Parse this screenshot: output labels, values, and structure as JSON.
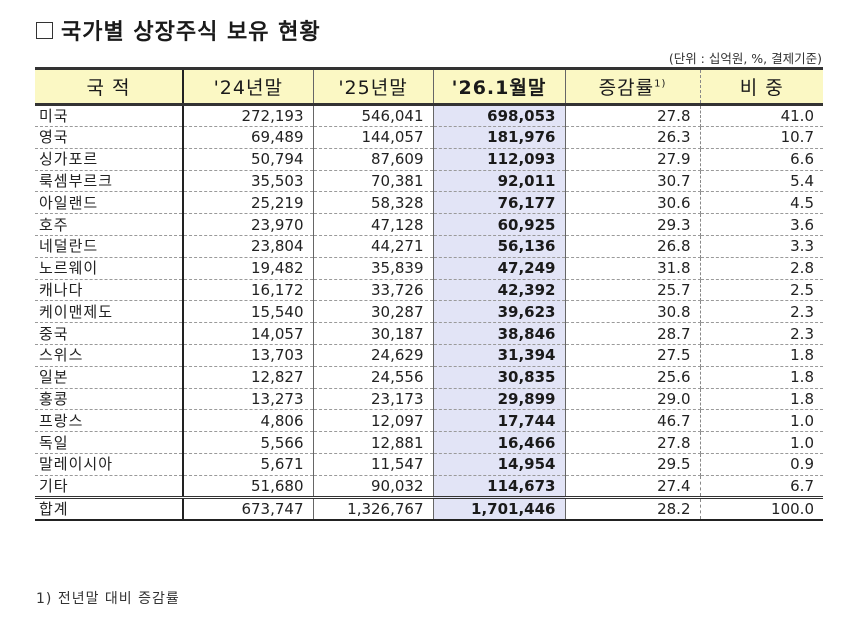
{
  "title": "국가별 상장주식 보유 현황",
  "unit_note": "(단위 : 십억원, %, 결제기준)",
  "headers": {
    "country": "국 적",
    "y24": "'24년말",
    "y25": "'25년말",
    "y26": "'26.1월말",
    "growth": "증감률",
    "growth_sup": "1)",
    "share": "비 중"
  },
  "rows": [
    {
      "country": "미국",
      "y24": "272,193",
      "y25": "546,041",
      "y26": "698,053",
      "growth": "27.8",
      "share": "41.0"
    },
    {
      "country": "영국",
      "y24": "69,489",
      "y25": "144,057",
      "y26": "181,976",
      "growth": "26.3",
      "share": "10.7"
    },
    {
      "country": "싱가포르",
      "y24": "50,794",
      "y25": "87,609",
      "y26": "112,093",
      "growth": "27.9",
      "share": "6.6"
    },
    {
      "country": "룩셈부르크",
      "y24": "35,503",
      "y25": "70,381",
      "y26": "92,011",
      "growth": "30.7",
      "share": "5.4"
    },
    {
      "country": "아일랜드",
      "y24": "25,219",
      "y25": "58,328",
      "y26": "76,177",
      "growth": "30.6",
      "share": "4.5"
    },
    {
      "country": "호주",
      "y24": "23,970",
      "y25": "47,128",
      "y26": "60,925",
      "growth": "29.3",
      "share": "3.6"
    },
    {
      "country": "네덜란드",
      "y24": "23,804",
      "y25": "44,271",
      "y26": "56,136",
      "growth": "26.8",
      "share": "3.3"
    },
    {
      "country": "노르웨이",
      "y24": "19,482",
      "y25": "35,839",
      "y26": "47,249",
      "growth": "31.8",
      "share": "2.8"
    },
    {
      "country": "캐나다",
      "y24": "16,172",
      "y25": "33,726",
      "y26": "42,392",
      "growth": "25.7",
      "share": "2.5"
    },
    {
      "country": "케이맨제도",
      "y24": "15,540",
      "y25": "30,287",
      "y26": "39,623",
      "growth": "30.8",
      "share": "2.3"
    },
    {
      "country": "중국",
      "y24": "14,057",
      "y25": "30,187",
      "y26": "38,846",
      "growth": "28.7",
      "share": "2.3"
    },
    {
      "country": "스위스",
      "y24": "13,703",
      "y25": "24,629",
      "y26": "31,394",
      "growth": "27.5",
      "share": "1.8"
    },
    {
      "country": "일본",
      "y24": "12,827",
      "y25": "24,556",
      "y26": "30,835",
      "growth": "25.6",
      "share": "1.8"
    },
    {
      "country": "홍콩",
      "y24": "13,273",
      "y25": "23,173",
      "y26": "29,899",
      "growth": "29.0",
      "share": "1.8"
    },
    {
      "country": "프랑스",
      "y24": "4,806",
      "y25": "12,097",
      "y26": "17,744",
      "growth": "46.7",
      "share": "1.0"
    },
    {
      "country": "독일",
      "y24": "5,566",
      "y25": "12,881",
      "y26": "16,466",
      "growth": "27.8",
      "share": "1.0"
    },
    {
      "country": "말레이시아",
      "y24": "5,671",
      "y25": "11,547",
      "y26": "14,954",
      "growth": "29.5",
      "share": "0.9"
    },
    {
      "country": "기타",
      "y24": "51,680",
      "y25": "90,032",
      "y26": "114,673",
      "growth": "27.4",
      "share": "6.7"
    }
  ],
  "total": {
    "country": "합계",
    "y24": "673,747",
    "y25": "1,326,767",
    "y26": "1,701,446",
    "growth": "28.2",
    "share": "100.0"
  },
  "footnote": "1) 전년말 대비 증감률",
  "colors": {
    "header_bg": "#fbf8c4",
    "highlight_col_bg": "#e2e4f6"
  }
}
